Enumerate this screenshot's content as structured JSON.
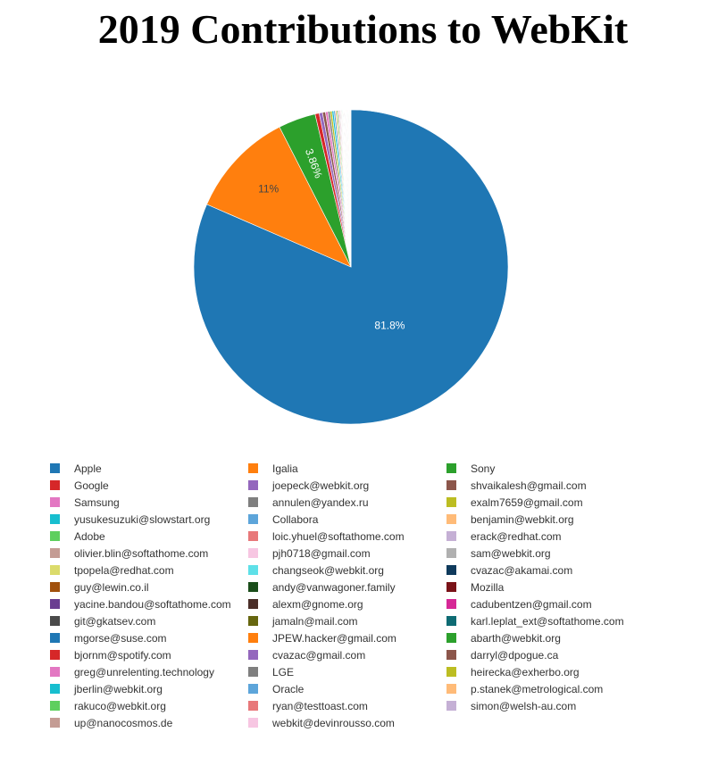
{
  "chart_data": {
    "type": "pie",
    "title": "2019 Contributions to WebKit",
    "legend_placement": "bottom",
    "slices": [
      {
        "label": "Apple",
        "value": 81.8,
        "color": "#1f77b4",
        "data_label": "81.8%"
      },
      {
        "label": "Igalia",
        "value": 11,
        "color": "#ff7f0e",
        "data_label": "11%"
      },
      {
        "label": "Sony",
        "value": 3.86,
        "color": "#2ca02c",
        "data_label": "3.86%"
      },
      {
        "label": "Google",
        "value": 0.42,
        "color": "#d62728",
        "data_label": ""
      },
      {
        "label": "joepeck@webkit.org",
        "value": 0.35,
        "color": "#9467bd",
        "data_label": ""
      },
      {
        "label": "shvaikalesh@gmail.com",
        "value": 0.3,
        "color": "#8c564b",
        "data_label": ""
      },
      {
        "label": "Samsung",
        "value": 0.25,
        "color": "#e377c2",
        "data_label": ""
      },
      {
        "label": "annulen@yandex.ru",
        "value": 0.22,
        "color": "#7f7f7f",
        "data_label": ""
      },
      {
        "label": "exalm7659@gmail.com",
        "value": 0.2,
        "color": "#bcbd22",
        "data_label": ""
      },
      {
        "label": "yusukesuzuki@slowstart.org",
        "value": 0.18,
        "color": "#17becf",
        "data_label": ""
      },
      {
        "label": "Collabora",
        "value": 0.16,
        "color": "#5da5da",
        "data_label": ""
      },
      {
        "label": "benjamin@webkit.org",
        "value": 0.14,
        "color": "#ffbb78",
        "data_label": ""
      },
      {
        "label": "Adobe",
        "value": 0.12,
        "color": "#5ecf5e",
        "data_label": ""
      },
      {
        "label": "loic.yhuel@softathome.com",
        "value": 0.1,
        "color": "#e8787a",
        "data_label": ""
      },
      {
        "label": "erack@redhat.com",
        "value": 0.09,
        "color": "#c5b0d5",
        "data_label": ""
      },
      {
        "label": "olivier.blin@softathome.com",
        "value": 0.08,
        "color": "#c49c94",
        "data_label": ""
      },
      {
        "label": "pjh0718@gmail.com",
        "value": 0.07,
        "color": "#f7c6e2",
        "data_label": ""
      },
      {
        "label": "sam@webkit.org",
        "value": 0.07,
        "color": "#b0b0b0",
        "data_label": ""
      },
      {
        "label": "tpopela@redhat.com",
        "value": 0.06,
        "color": "#dbdb6b",
        "data_label": ""
      },
      {
        "label": "changseok@webkit.org",
        "value": 0.06,
        "color": "#5ee0e8",
        "data_label": ""
      },
      {
        "label": "cvazac@akamai.com",
        "value": 0.05,
        "color": "#0f3a5c",
        "data_label": ""
      },
      {
        "label": "guy@lewin.co.il",
        "value": 0.05,
        "color": "#a1500c",
        "data_label": ""
      },
      {
        "label": "andy@vanwagoner.family",
        "value": 0.05,
        "color": "#1a4d1a",
        "data_label": ""
      },
      {
        "label": "Mozilla",
        "value": 0.04,
        "color": "#7a1318",
        "data_label": ""
      },
      {
        "label": "yacine.bandou@softathome.com",
        "value": 0.04,
        "color": "#6a3d91",
        "data_label": ""
      },
      {
        "label": "alexm@gnome.org",
        "value": 0.04,
        "color": "#4a2e28",
        "data_label": ""
      },
      {
        "label": "cadubentzen@gmail.com",
        "value": 0.04,
        "color": "#d62896",
        "data_label": ""
      },
      {
        "label": "git@gkatsev.com",
        "value": 0.04,
        "color": "#4a4a4a",
        "data_label": ""
      },
      {
        "label": "jamaln@mail.com",
        "value": 0.03,
        "color": "#66660f",
        "data_label": ""
      },
      {
        "label": "karl.leplat_ext@softathome.com",
        "value": 0.03,
        "color": "#0e6b73",
        "data_label": ""
      },
      {
        "label": "mgorse@suse.com",
        "value": 0.03,
        "color": "#1f77b4",
        "data_label": ""
      },
      {
        "label": "JPEW.hacker@gmail.com",
        "value": 0.03,
        "color": "#ff7f0e",
        "data_label": ""
      },
      {
        "label": "abarth@webkit.org",
        "value": 0.03,
        "color": "#2ca02c",
        "data_label": ""
      },
      {
        "label": "bjornm@spotify.com",
        "value": 0.03,
        "color": "#d62728",
        "data_label": ""
      },
      {
        "label": "cvazac@gmail.com",
        "value": 0.03,
        "color": "#9467bd",
        "data_label": ""
      },
      {
        "label": "darryl@dpogue.ca",
        "value": 0.03,
        "color": "#8c564b",
        "data_label": ""
      },
      {
        "label": "greg@unrelenting.technology",
        "value": 0.02,
        "color": "#e377c2",
        "data_label": ""
      },
      {
        "label": "LGE",
        "value": 0.02,
        "color": "#7f7f7f",
        "data_label": ""
      },
      {
        "label": "heirecka@exherbo.org",
        "value": 0.02,
        "color": "#bcbd22",
        "data_label": ""
      },
      {
        "label": "jberlin@webkit.org",
        "value": 0.02,
        "color": "#17becf",
        "data_label": ""
      },
      {
        "label": "Oracle",
        "value": 0.02,
        "color": "#5da5da",
        "data_label": ""
      },
      {
        "label": "p.stanek@metrological.com",
        "value": 0.02,
        "color": "#ffbb78",
        "data_label": ""
      },
      {
        "label": "rakuco@webkit.org",
        "value": 0.02,
        "color": "#5ecf5e",
        "data_label": ""
      },
      {
        "label": "ryan@testtoast.com",
        "value": 0.02,
        "color": "#e8787a",
        "data_label": ""
      },
      {
        "label": "simon@welsh-au.com",
        "value": 0.02,
        "color": "#c5b0d5",
        "data_label": ""
      },
      {
        "label": "up@nanocosmos.de",
        "value": 0.02,
        "color": "#c49c94",
        "data_label": ""
      },
      {
        "label": "webkit@devinrousso.com",
        "value": 0.02,
        "color": "#f7c6e2",
        "data_label": ""
      }
    ]
  }
}
